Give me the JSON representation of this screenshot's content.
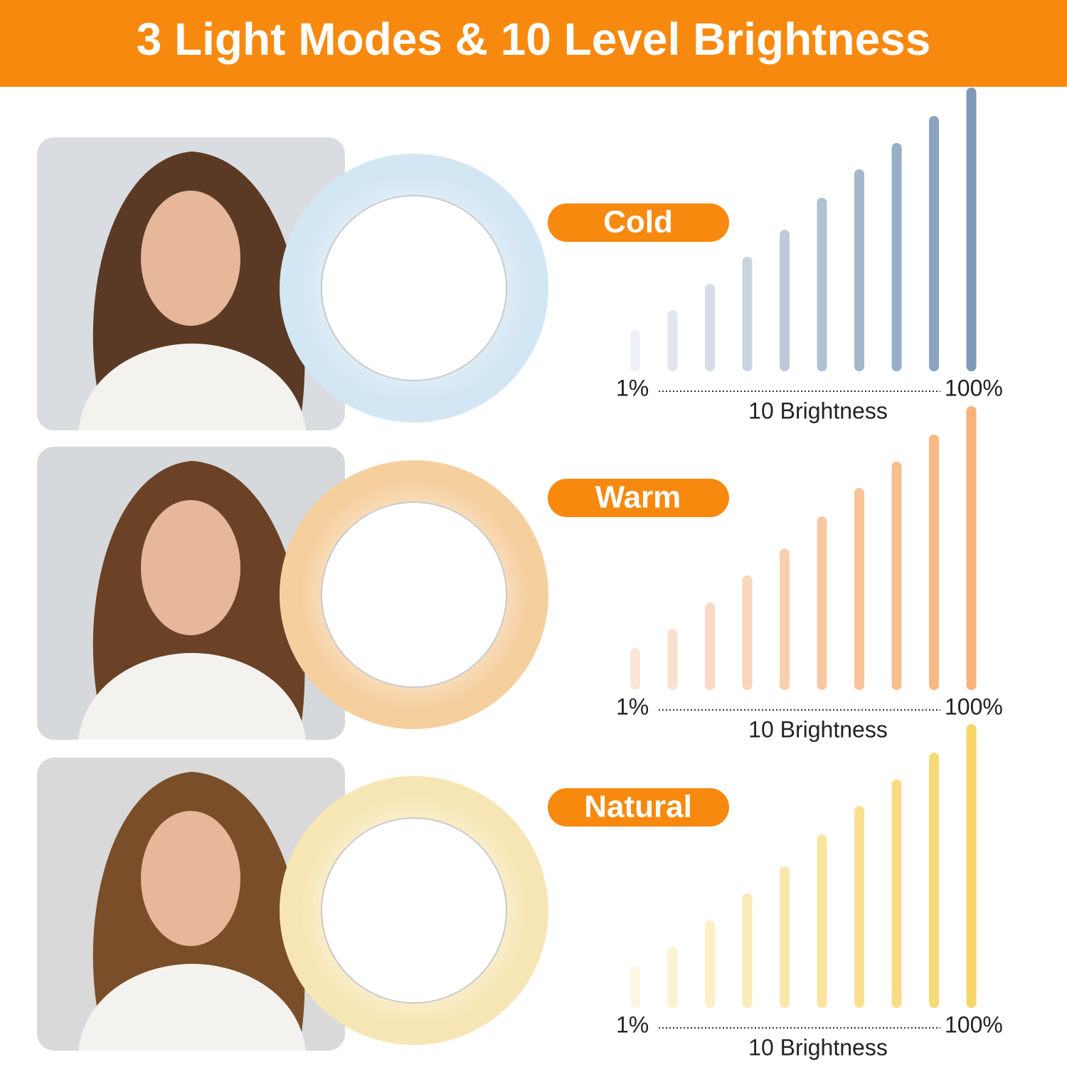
{
  "header": {
    "title": "3 Light Modes & 10 Level Brightness"
  },
  "modes": [
    {
      "label": "Cold",
      "min_label": "1%",
      "max_label": "100%",
      "caption": "10 Brightness"
    },
    {
      "label": "Warm",
      "min_label": "1%",
      "max_label": "100%",
      "caption": "10 Brightness"
    },
    {
      "label": "Natural",
      "min_label": "1%",
      "max_label": "100%",
      "caption": "10 Brightness"
    }
  ]
}
